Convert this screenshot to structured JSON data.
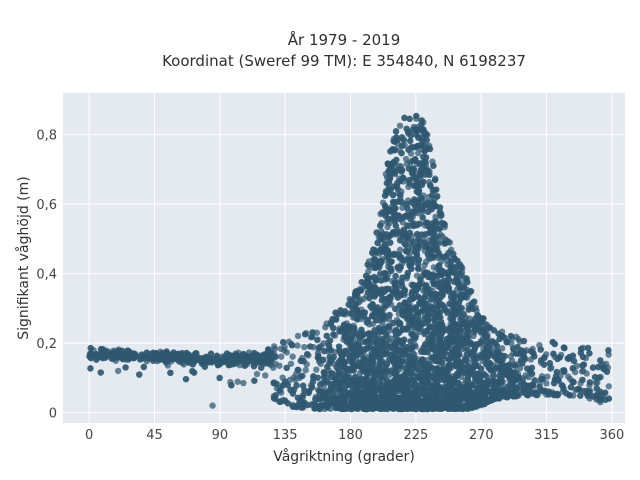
{
  "chart_data": {
    "type": "scatter",
    "title_lines": [
      "År 1979 - 2019",
      "Koordinat (Sweref 99 TM): E 354840, N 6198237"
    ],
    "xlabel": "Vågriktning (grader)",
    "ylabel": "Signifikant våghöjd (m)",
    "xlim": [
      -18,
      369
    ],
    "ylim": [
      -0.03,
      0.92
    ],
    "x_ticks": [
      0,
      45,
      90,
      135,
      180,
      225,
      270,
      315,
      360
    ],
    "y_ticks": [
      0,
      0.2,
      0.4,
      0.6,
      0.8
    ],
    "y_tick_labels": [
      "0",
      "0,2",
      "0,4",
      "0,6",
      "0,8"
    ],
    "grid": true,
    "marker_color": "#2f5870",
    "background_color": "#e5e9f0",
    "point_density_envelope": {
      "direction": [
        0,
        45,
        90,
        120,
        135,
        150,
        165,
        180,
        190,
        200,
        205,
        210,
        215,
        220,
        225,
        230,
        235,
        240,
        250,
        260,
        270,
        280,
        300,
        330,
        360
      ],
      "upper_hs": [
        0.19,
        0.18,
        0.17,
        0.18,
        0.21,
        0.24,
        0.27,
        0.33,
        0.4,
        0.55,
        0.72,
        0.8,
        0.84,
        0.89,
        0.87,
        0.84,
        0.78,
        0.62,
        0.47,
        0.4,
        0.28,
        0.24,
        0.21,
        0.2,
        0.18
      ],
      "lower_hs": [
        0.1,
        0.1,
        0.08,
        0.06,
        0.02,
        0.01,
        0.01,
        0.01,
        0.01,
        0.01,
        0.01,
        0.01,
        0.01,
        0.01,
        0.01,
        0.01,
        0.01,
        0.01,
        0.01,
        0.01,
        0.02,
        0.04,
        0.05,
        0.05,
        0.03
      ]
    }
  }
}
